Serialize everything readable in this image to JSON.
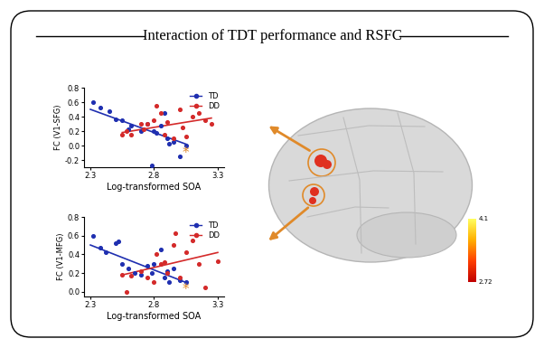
{
  "title": "Interaction of TDT performance and RSFC",
  "chart_data": [
    {
      "type": "scatter",
      "y_label": "FC (V1-SFG)",
      "x_label": "Log-transformed SOA",
      "xlim": [
        2.25,
        3.35
      ],
      "xticks": [
        2.3,
        2.8,
        3.3
      ],
      "ylim": [
        -0.3,
        0.8
      ],
      "yticks": [
        -0.2,
        {
          "value": 0,
          "label": "0.0"
        },
        0.2,
        0.4,
        0.6,
        0.8
      ],
      "legend": "upper right",
      "marker": "o",
      "series": [
        {
          "name": "TD",
          "color": "#1f2fb0",
          "x": [
            2.32,
            2.38,
            2.45,
            2.5,
            2.55,
            2.6,
            2.62,
            2.7,
            2.75,
            2.78,
            2.8,
            2.82,
            2.85,
            2.88,
            2.9,
            2.92,
            2.95,
            3.0,
            3.05
          ],
          "values": [
            0.6,
            0.52,
            0.47,
            0.36,
            0.35,
            0.22,
            0.28,
            0.2,
            0.3,
            -0.27,
            0.2,
            0.18,
            0.28,
            0.45,
            0.1,
            0.02,
            0.05,
            -0.15,
            0.0
          ],
          "fit": {
            "x": [
              2.3,
              3.05
            ],
            "values": [
              0.5,
              0.02
            ]
          }
        },
        {
          "name": "DD",
          "color": "#d42a2a",
          "x": [
            2.55,
            2.58,
            2.62,
            2.7,
            2.72,
            2.75,
            2.8,
            2.82,
            2.85,
            2.88,
            2.9,
            2.95,
            3.0,
            3.02,
            3.05,
            3.1,
            3.15,
            3.2,
            3.25
          ],
          "values": [
            0.15,
            0.2,
            0.15,
            0.3,
            0.23,
            0.3,
            0.35,
            0.55,
            0.45,
            0.15,
            0.32,
            0.1,
            0.5,
            0.25,
            0.12,
            0.4,
            0.45,
            0.35,
            0.3
          ],
          "fit": {
            "x": [
              2.55,
              3.25
            ],
            "values": [
              0.18,
              0.38
            ]
          }
        }
      ],
      "annotations": [
        {
          "text": "*",
          "x": 3.05,
          "y": -0.1,
          "color": "#e08a2a"
        }
      ]
    },
    {
      "type": "scatter",
      "y_label": "FC (V1-MFG)",
      "x_label": "Log-transformed SOA",
      "xlim": [
        2.25,
        3.35
      ],
      "xticks": [
        2.3,
        2.8,
        3.3
      ],
      "ylim": [
        -0.05,
        0.8
      ],
      "yticks": [
        {
          "value": 0,
          "label": "0.0"
        },
        0.2,
        0.4,
        0.6,
        0.8
      ],
      "legend": "upper right",
      "marker": "o",
      "series": [
        {
          "name": "TD",
          "color": "#1f2fb0",
          "x": [
            2.32,
            2.38,
            2.42,
            2.5,
            2.52,
            2.55,
            2.6,
            2.65,
            2.7,
            2.75,
            2.78,
            2.8,
            2.85,
            2.88,
            2.9,
            2.92,
            2.95,
            3.0,
            3.05
          ],
          "values": [
            0.6,
            0.47,
            0.42,
            0.52,
            0.54,
            0.3,
            0.25,
            0.2,
            0.18,
            0.28,
            0.2,
            0.3,
            0.45,
            0.15,
            0.22,
            0.1,
            0.25,
            0.12,
            0.1
          ],
          "fit": {
            "x": [
              2.3,
              3.05
            ],
            "values": [
              0.5,
              0.1
            ]
          }
        },
        {
          "name": "DD",
          "color": "#d42a2a",
          "x": [
            2.55,
            2.58,
            2.62,
            2.7,
            2.75,
            2.8,
            2.82,
            2.85,
            2.88,
            2.9,
            2.95,
            2.97,
            3.0,
            3.05,
            3.1,
            3.15,
            3.2,
            3.3
          ],
          "values": [
            0.18,
            0.0,
            0.17,
            0.22,
            0.15,
            0.1,
            0.4,
            0.3,
            0.32,
            0.2,
            0.5,
            0.63,
            0.15,
            0.42,
            0.55,
            0.3,
            0.05,
            0.33
          ],
          "fit": {
            "x": [
              2.55,
              3.3
            ],
            "values": [
              0.18,
              0.42
            ]
          }
        }
      ],
      "annotations": [
        {
          "text": "*",
          "x": 3.05,
          "y": 0.02,
          "color": "#e08a2a"
        }
      ]
    }
  ],
  "colorbar": {
    "range": [
      2.72,
      4.1
    ],
    "ticks": [
      2.72,
      4.1
    ]
  }
}
